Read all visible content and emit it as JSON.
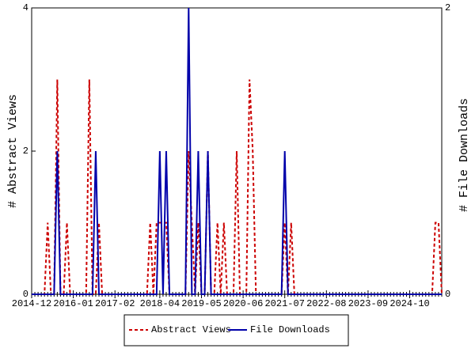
{
  "chart_data": {
    "type": "line",
    "categories": [
      "2014-12",
      null,
      null,
      null,
      null,
      null,
      null,
      null,
      null,
      null,
      null,
      null,
      null,
      "2016-01",
      null,
      null,
      null,
      null,
      null,
      null,
      null,
      null,
      null,
      null,
      null,
      null,
      "2017-02",
      null,
      null,
      null,
      null,
      null,
      null,
      null,
      null,
      null,
      null,
      null,
      null,
      null,
      "2018-04",
      null,
      null,
      null,
      null,
      null,
      null,
      null,
      null,
      null,
      null,
      null,
      null,
      "2019-05",
      null,
      null,
      null,
      null,
      null,
      null,
      null,
      null,
      null,
      null,
      null,
      null,
      "2020-06",
      null,
      null,
      null,
      null,
      null,
      null,
      null,
      null,
      null,
      null,
      null,
      null,
      "2021-07",
      null,
      null,
      null,
      null,
      null,
      null,
      null,
      null,
      null,
      null,
      null,
      null,
      "2022-08",
      null,
      null,
      null,
      null,
      null,
      null,
      null,
      null,
      null,
      null,
      null,
      null,
      "2023-09",
      null,
      null,
      null,
      null,
      null,
      null,
      null,
      null,
      null,
      null,
      null,
      null,
      "2024-10",
      null,
      null,
      null,
      null,
      null,
      null,
      null,
      null,
      null,
      null
    ],
    "series": [
      {
        "name": "Abstract Views",
        "color": "#cc0000",
        "dash": true,
        "axis": "y",
        "values": [
          0,
          0,
          0,
          0,
          0,
          1,
          0,
          0,
          3,
          0,
          0,
          1,
          0,
          0,
          0,
          0,
          0,
          0,
          3,
          0,
          0,
          1,
          0,
          0,
          0,
          0,
          0,
          0,
          0,
          0,
          0,
          0,
          0,
          0,
          0,
          0,
          0,
          1,
          0,
          1,
          1,
          1,
          1,
          0,
          0,
          0,
          0,
          0,
          0,
          2,
          1,
          0,
          1,
          0,
          0,
          2,
          0,
          0,
          1,
          0,
          1,
          0,
          0,
          0,
          2,
          0,
          0,
          0,
          3,
          2,
          0,
          0,
          0,
          0,
          0,
          0,
          0,
          0,
          0,
          1,
          0,
          1,
          0,
          0,
          0,
          0,
          0,
          0,
          0,
          0,
          0,
          0,
          0,
          0,
          0,
          0,
          0,
          0,
          0,
          0,
          0,
          0,
          0,
          0,
          0,
          0,
          0,
          0,
          0,
          0,
          0,
          0,
          0,
          0,
          0,
          0,
          0,
          0,
          0,
          0,
          0,
          0,
          0,
          0,
          0,
          0,
          1,
          1,
          0
        ]
      },
      {
        "name": "File Downloads",
        "color": "#0000aa",
        "dash": false,
        "axis": "y2",
        "values": [
          0,
          0,
          0,
          0,
          0,
          0,
          0,
          0,
          1,
          0,
          0,
          0,
          0,
          0,
          0,
          0,
          0,
          0,
          0,
          0,
          1,
          0,
          0,
          0,
          0,
          0,
          0,
          0,
          0,
          0,
          0,
          0,
          0,
          0,
          0,
          0,
          0,
          0,
          0,
          0,
          1,
          0,
          1,
          0,
          0,
          0,
          0,
          0,
          0,
          2,
          0,
          0,
          1,
          0,
          0,
          1,
          0,
          0,
          0,
          0,
          0,
          0,
          0,
          0,
          0,
          0,
          0,
          0,
          0,
          0,
          0,
          0,
          0,
          0,
          0,
          0,
          0,
          0,
          0,
          1,
          0,
          0,
          0,
          0,
          0,
          0,
          0,
          0,
          0,
          0,
          0,
          0,
          0,
          0,
          0,
          0,
          0,
          0,
          0,
          0,
          0,
          0,
          0,
          0,
          0,
          0,
          0,
          0,
          0,
          0,
          0,
          0,
          0,
          0,
          0,
          0,
          0,
          0,
          0,
          0,
          0,
          0,
          0,
          0,
          0,
          0,
          0,
          0,
          0
        ]
      }
    ],
    "ylabel": "# Abstract Views",
    "y2label": "# File Downloads",
    "ylim": [
      0,
      4
    ],
    "yticks": [
      0,
      2,
      4
    ],
    "y2lim": [
      0,
      2
    ],
    "y2ticks": [
      0,
      2
    ],
    "grid": false,
    "legend": "bottom"
  }
}
